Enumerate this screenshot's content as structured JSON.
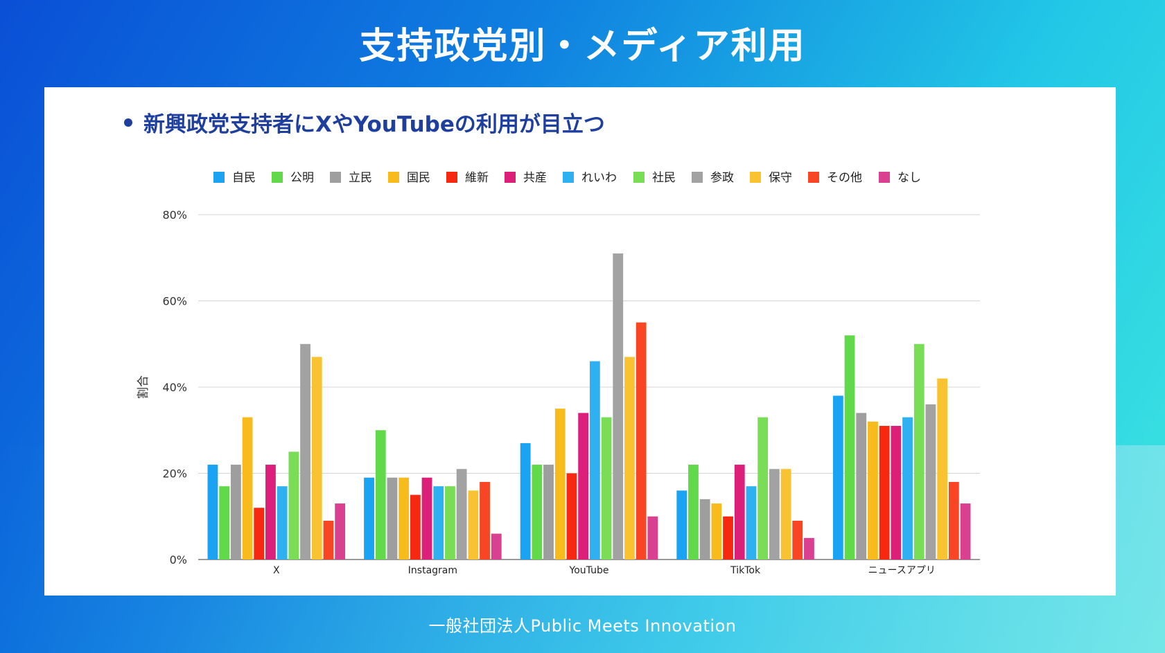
{
  "slide": {
    "title": "支持政党別・メディア利用",
    "footer": "一般社団法人Public Meets Innovation"
  },
  "bullet": {
    "text": "新興政党支持者にXやYouTubeの利用が目立つ"
  },
  "chart_data": {
    "type": "bar",
    "title": "",
    "xlabel": "",
    "ylabel": "割合",
    "ylim": [
      0,
      80
    ],
    "yticks": [
      "0%",
      "20%",
      "40%",
      "60%",
      "80%"
    ],
    "ytick_values": [
      0,
      20,
      40,
      60,
      80
    ],
    "legend_position": "top",
    "grid": true,
    "categories": [
      "X",
      "Instagram",
      "YouTube",
      "TikTok",
      "ニュースアプリ"
    ],
    "series": [
      {
        "name": "自民",
        "color": "#1aa3f2",
        "values": [
          22,
          19,
          27,
          16,
          38
        ]
      },
      {
        "name": "公明",
        "color": "#62d94a",
        "values": [
          17,
          30,
          22,
          22,
          52
        ]
      },
      {
        "name": "立民",
        "color": "#9e9e9e",
        "values": [
          22,
          19,
          22,
          14,
          34
        ]
      },
      {
        "name": "国民",
        "color": "#f7bb1c",
        "values": [
          33,
          19,
          35,
          13,
          32
        ]
      },
      {
        "name": "維新",
        "color": "#f6280f",
        "values": [
          12,
          15,
          20,
          10,
          31
        ]
      },
      {
        "name": "共産",
        "color": "#dc1f79",
        "values": [
          22,
          19,
          34,
          22,
          31
        ]
      },
      {
        "name": "れいわ",
        "color": "#2fb0f0",
        "values": [
          17,
          17,
          46,
          17,
          33
        ]
      },
      {
        "name": "社民",
        "color": "#79de56",
        "values": [
          25,
          17,
          33,
          33,
          50
        ]
      },
      {
        "name": "参政",
        "color": "#a2a2a2",
        "values": [
          50,
          21,
          71,
          21,
          36
        ]
      },
      {
        "name": "保守",
        "color": "#f9c230",
        "values": [
          47,
          16,
          47,
          21,
          42
        ]
      },
      {
        "name": "その他",
        "color": "#f84524",
        "values": [
          9,
          18,
          55,
          9,
          18
        ]
      },
      {
        "name": "なし",
        "color": "#d9408f",
        "values": [
          13,
          6,
          10,
          5,
          13
        ]
      }
    ]
  }
}
